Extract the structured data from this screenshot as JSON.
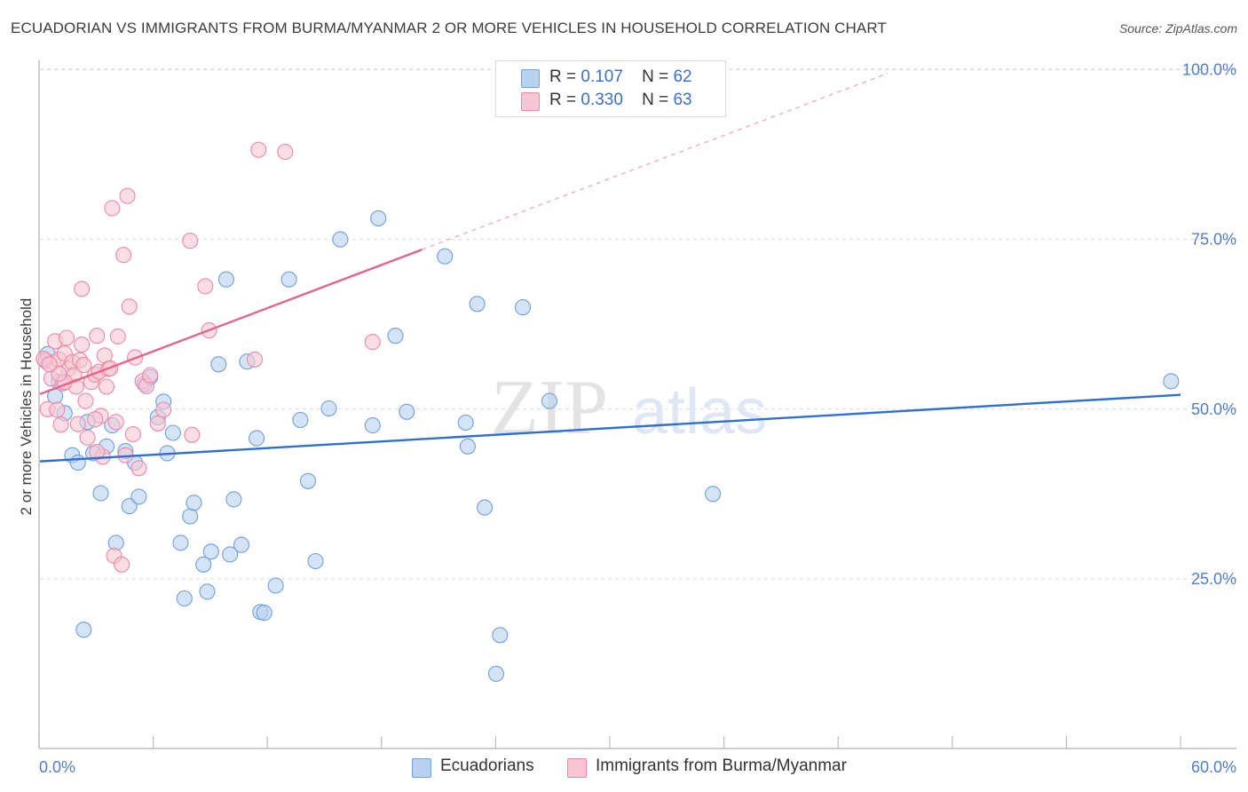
{
  "title": "ECUADORIAN VS IMMIGRANTS FROM BURMA/MYANMAR 2 OR MORE VEHICLES IN HOUSEHOLD CORRELATION CHART",
  "source": "Source: ZipAtlas.com",
  "watermark": {
    "zip": "ZIP",
    "atlas": "atlas"
  },
  "legend": {
    "rows": [
      {
        "r_label": "R =",
        "r_value": "0.107",
        "n_label": "N =",
        "n_value": "62",
        "color": "#a9c7ef"
      },
      {
        "r_label": "R =",
        "r_value": "0.330",
        "n_label": "N =",
        "n_value": "63",
        "color": "#f6bfd0"
      }
    ]
  },
  "bottom_legend": [
    {
      "label": "Ecuadorians",
      "color": "#a9c7ef"
    },
    {
      "label": "Immigrants from Burma/Myanmar",
      "color": "#f6bfd0"
    }
  ],
  "chart_data": {
    "type": "scatter",
    "ylabel": "2 or more Vehicles in Household",
    "xlim": [
      0,
      60
    ],
    "ylim": [
      0,
      102
    ],
    "y_ticks": [
      {
        "value": 25,
        "label": "25.0%"
      },
      {
        "value": 50,
        "label": "50.0%"
      },
      {
        "value": 75,
        "label": "75.0%"
      },
      {
        "value": 100,
        "label": "100.0%"
      }
    ],
    "x_tick_labels": {
      "left": "0.0%",
      "right": "60.0%"
    },
    "grid": "dashed-horizontal",
    "series": [
      {
        "name": "Ecuadorians",
        "color": "#6f9fdd",
        "fill": "#b9d1f1",
        "trend": {
          "x": [
            0,
            60
          ],
          "y": [
            42.3,
            52.1
          ],
          "color": "#2f6fcf"
        },
        "points": [
          [
            0.3,
            57.1
          ],
          [
            0.4,
            58.1
          ],
          [
            0.8,
            51.9
          ],
          [
            1.0,
            54.0
          ],
          [
            1.3,
            49.4
          ],
          [
            1.7,
            43.2
          ],
          [
            2.0,
            42.1
          ],
          [
            2.3,
            17.5
          ],
          [
            2.5,
            48.1
          ],
          [
            2.8,
            43.5
          ],
          [
            3.2,
            37.6
          ],
          [
            3.5,
            44.5
          ],
          [
            3.8,
            47.6
          ],
          [
            4.0,
            30.3
          ],
          [
            4.5,
            43.8
          ],
          [
            4.7,
            35.7
          ],
          [
            5.0,
            42.1
          ],
          [
            5.2,
            37.1
          ],
          [
            5.5,
            53.7
          ],
          [
            5.8,
            54.7
          ],
          [
            6.2,
            48.8
          ],
          [
            6.5,
            51.1
          ],
          [
            6.7,
            43.5
          ],
          [
            7.0,
            46.5
          ],
          [
            7.4,
            30.3
          ],
          [
            7.6,
            22.1
          ],
          [
            7.9,
            34.2
          ],
          [
            8.1,
            36.2
          ],
          [
            8.6,
            27.1
          ],
          [
            8.8,
            23.1
          ],
          [
            9.0,
            29.0
          ],
          [
            9.4,
            56.6
          ],
          [
            9.8,
            69.1
          ],
          [
            10.0,
            28.6
          ],
          [
            10.2,
            36.7
          ],
          [
            10.6,
            30.0
          ],
          [
            10.9,
            57.0
          ],
          [
            11.4,
            45.7
          ],
          [
            11.6,
            20.1
          ],
          [
            11.8,
            20.0
          ],
          [
            12.4,
            24.0
          ],
          [
            13.1,
            69.1
          ],
          [
            13.7,
            48.4
          ],
          [
            14.1,
            39.4
          ],
          [
            14.5,
            27.6
          ],
          [
            15.2,
            50.1
          ],
          [
            15.8,
            75.0
          ],
          [
            17.5,
            47.6
          ],
          [
            17.8,
            78.1
          ],
          [
            18.7,
            60.8
          ],
          [
            19.3,
            49.6
          ],
          [
            21.3,
            72.5
          ],
          [
            22.4,
            48.0
          ],
          [
            22.5,
            44.5
          ],
          [
            23.0,
            65.5
          ],
          [
            23.4,
            35.5
          ],
          [
            24.2,
            16.7
          ],
          [
            24.0,
            11.0
          ],
          [
            25.4,
            65.0
          ],
          [
            26.8,
            51.2
          ],
          [
            35.4,
            37.5
          ],
          [
            59.5,
            54.1
          ]
        ]
      },
      {
        "name": "Immigrants from Burma/Myanmar",
        "color": "#e989a6",
        "fill": "#f7c6d4",
        "trend": {
          "x": [
            0,
            20.1
          ],
          "y": [
            52.2,
            73.5
          ],
          "color": "#e0668c",
          "extended_to_x": 44.6
        },
        "points": [
          [
            0.3,
            57.1
          ],
          [
            0.4,
            50.0
          ],
          [
            0.6,
            54.5
          ],
          [
            0.7,
            56.9
          ],
          [
            0.8,
            60.0
          ],
          [
            0.9,
            49.9
          ],
          [
            1.0,
            57.3
          ],
          [
            1.1,
            47.7
          ],
          [
            1.2,
            53.8
          ],
          [
            1.3,
            58.2
          ],
          [
            1.4,
            60.5
          ],
          [
            1.5,
            55.9
          ],
          [
            1.7,
            56.9
          ],
          [
            1.8,
            55.0
          ],
          [
            1.9,
            53.3
          ],
          [
            2.0,
            47.8
          ],
          [
            2.1,
            57.2
          ],
          [
            2.2,
            59.5
          ],
          [
            2.2,
            67.7
          ],
          [
            2.3,
            56.5
          ],
          [
            2.4,
            51.2
          ],
          [
            2.5,
            45.8
          ],
          [
            2.7,
            54.0
          ],
          [
            2.9,
            55.1
          ],
          [
            3.0,
            60.8
          ],
          [
            3.1,
            55.5
          ],
          [
            3.2,
            49.0
          ],
          [
            3.3,
            43.0
          ],
          [
            3.4,
            57.9
          ],
          [
            3.5,
            53.3
          ],
          [
            3.6,
            55.9
          ],
          [
            3.7,
            56.0
          ],
          [
            3.8,
            79.6
          ],
          [
            3.9,
            28.4
          ],
          [
            4.0,
            48.1
          ],
          [
            4.1,
            60.7
          ],
          [
            4.3,
            27.1
          ],
          [
            4.4,
            72.7
          ],
          [
            4.5,
            43.2
          ],
          [
            4.6,
            81.4
          ],
          [
            4.7,
            65.1
          ],
          [
            4.9,
            46.3
          ],
          [
            5.0,
            57.6
          ],
          [
            5.2,
            41.3
          ],
          [
            5.4,
            54.1
          ],
          [
            5.6,
            53.4
          ],
          [
            5.8,
            55.0
          ],
          [
            6.2,
            47.9
          ],
          [
            6.5,
            49.9
          ],
          [
            7.9,
            74.8
          ],
          [
            8.0,
            46.2
          ],
          [
            8.7,
            68.1
          ],
          [
            8.9,
            61.6
          ],
          [
            11.3,
            57.3
          ],
          [
            11.5,
            88.2
          ],
          [
            12.9,
            87.9
          ],
          [
            17.5,
            59.9
          ],
          [
            1.3,
            54.0
          ],
          [
            2.9,
            48.5
          ],
          [
            3.0,
            43.7
          ],
          [
            1.0,
            55.2
          ],
          [
            0.2,
            57.4
          ],
          [
            0.5,
            56.6
          ]
        ]
      }
    ]
  }
}
